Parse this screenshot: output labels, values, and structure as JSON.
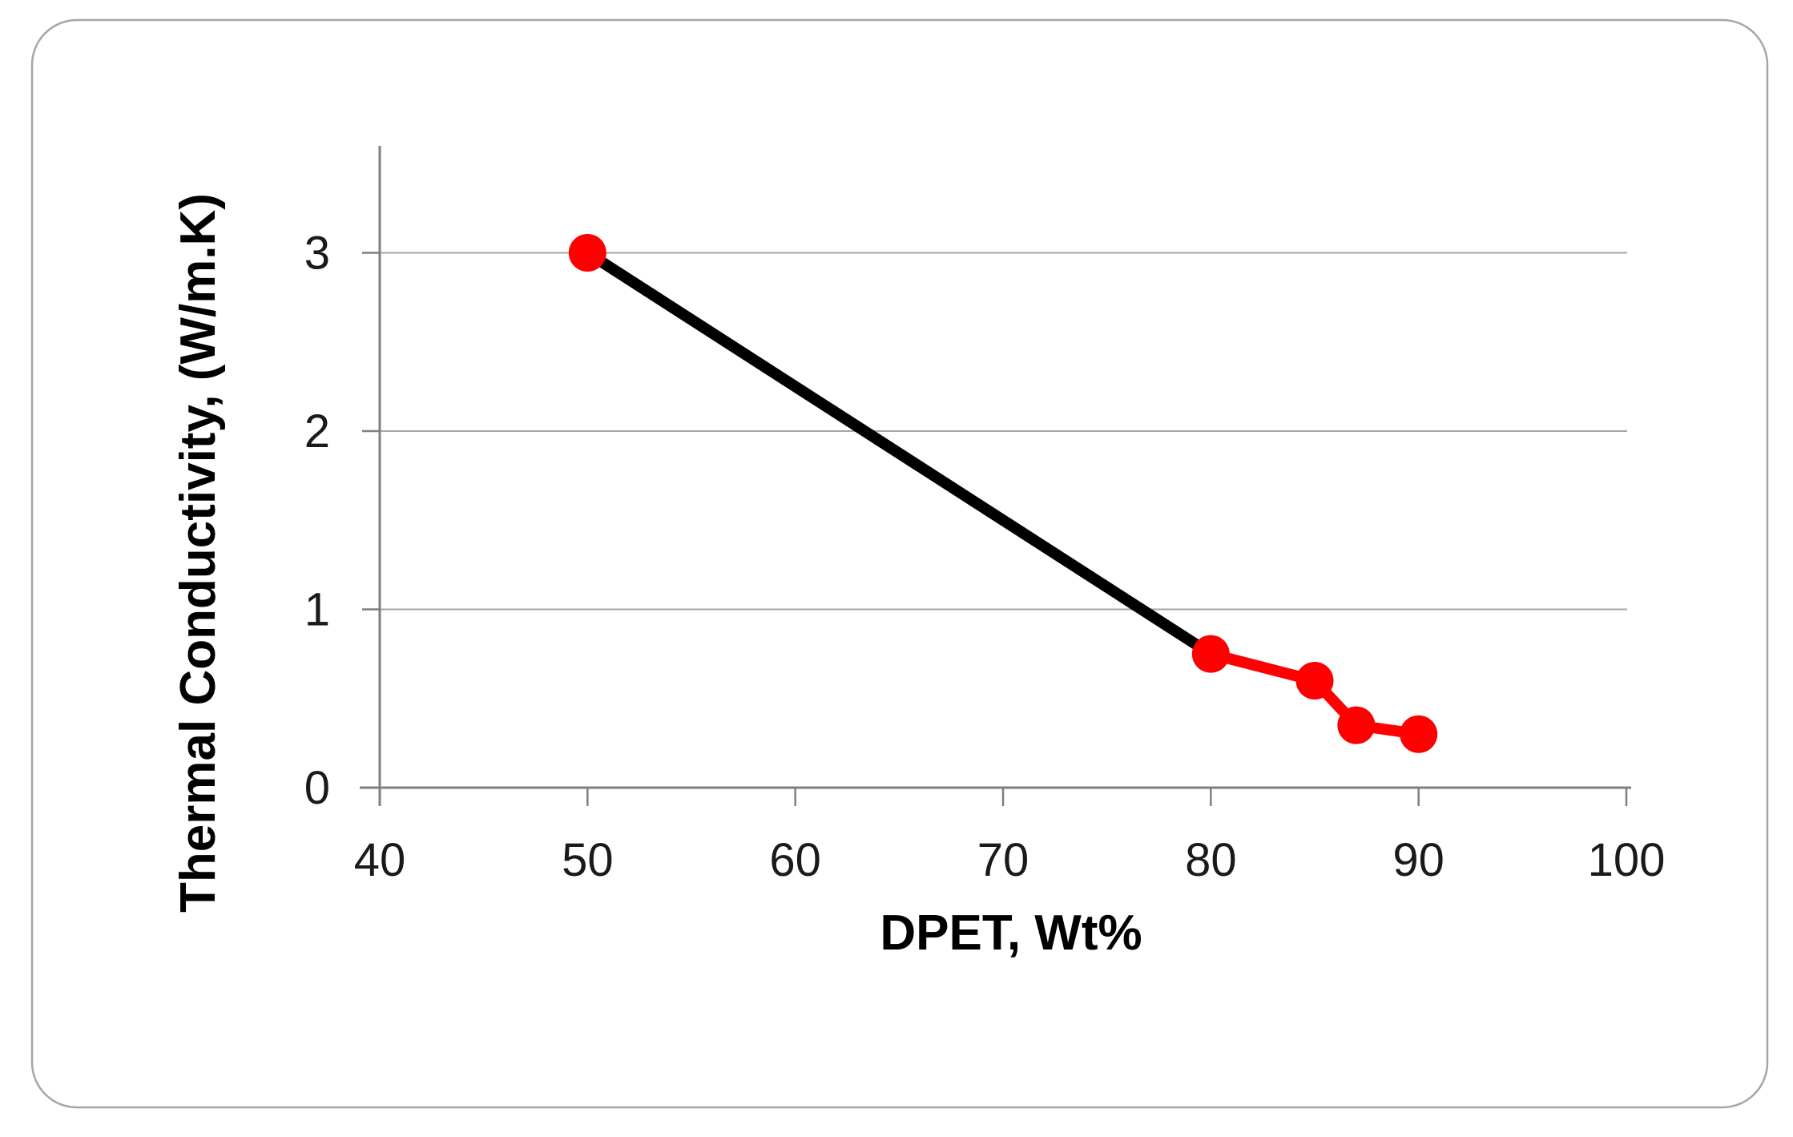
{
  "figure": {
    "background_color": "#ffffff",
    "frame_border_color": "#a6a6a6"
  },
  "chart_data": {
    "type": "line",
    "title": "",
    "xlabel": "DPET, Wt%",
    "ylabel": "Thermal Conductivity, (W/m.K)",
    "xlim": [
      40,
      100
    ],
    "ylim": [
      0,
      3.6
    ],
    "x_ticks": [
      40,
      50,
      60,
      70,
      80,
      90,
      100
    ],
    "y_ticks": [
      0,
      1,
      2,
      3
    ],
    "grid": "horizontal-only",
    "legend_position": "none",
    "series": [
      {
        "name": "thermal-conductivity-vs-dpet",
        "x": [
          50,
          80,
          85,
          87,
          90
        ],
        "y": [
          3.0,
          0.75,
          0.6,
          0.35,
          0.3
        ],
        "marker": "circle",
        "marker_color": "#fe0000",
        "segment_colors": [
          "#000000",
          "#fe0000",
          "#fe0000",
          "#fe0000"
        ]
      }
    ],
    "colors": {
      "axis_line": "#7f7f7f",
      "gridline": "#a6a6a6",
      "tick_label": "#1a1a1a",
      "axis_title": "#000000"
    }
  }
}
